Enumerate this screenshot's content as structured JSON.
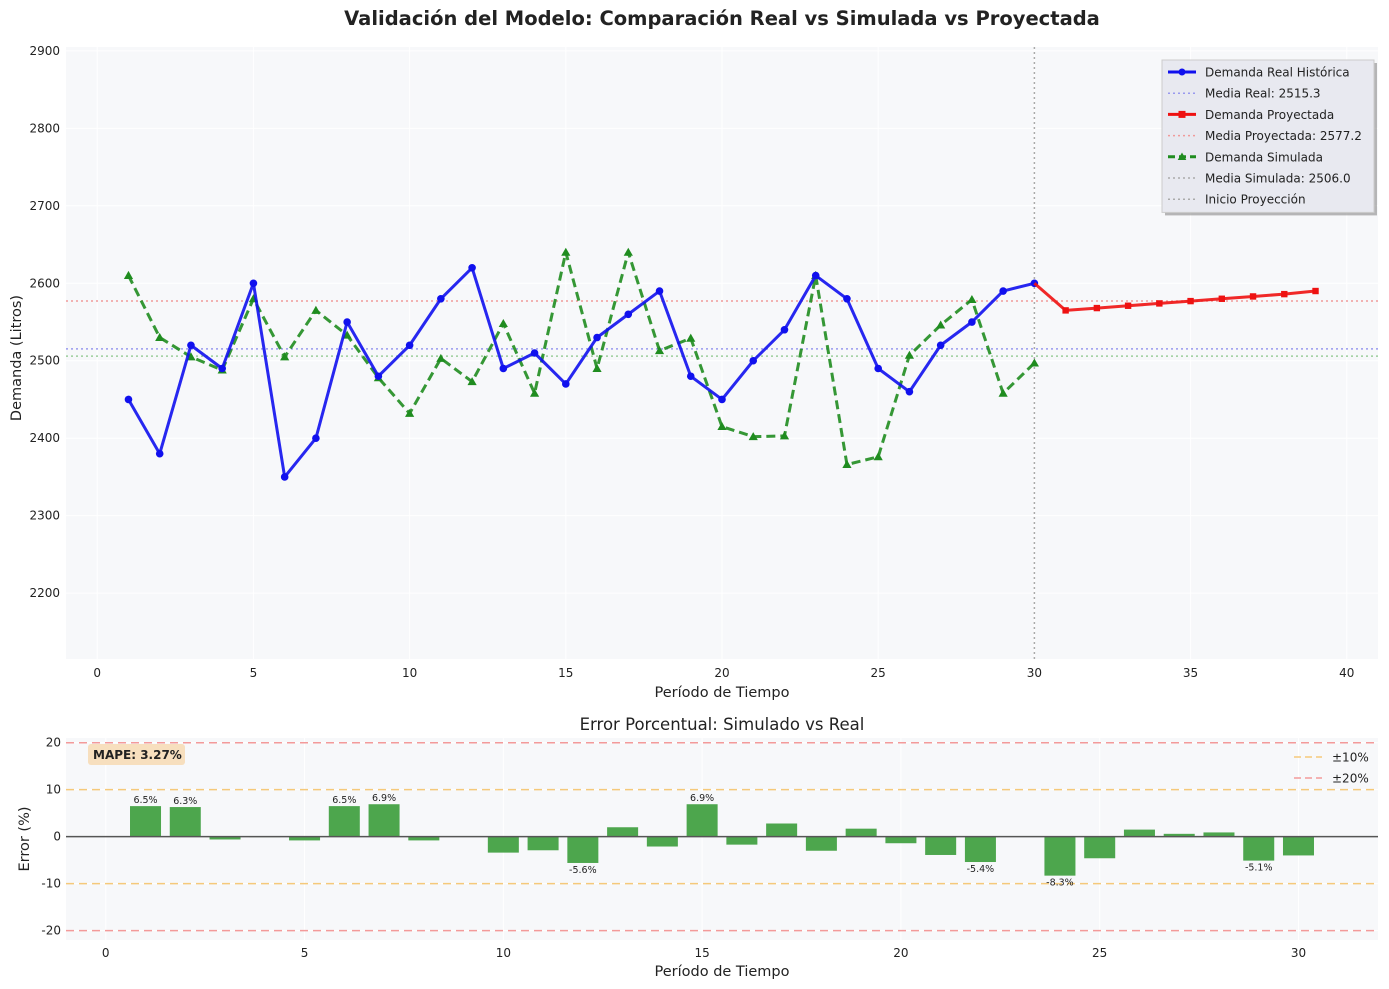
{
  "figure_title": "Validación del Modelo: Comparación Real vs Simulada vs Proyectada",
  "chart_data": [
    {
      "type": "line",
      "title": "Validación del Modelo: Comparación Real vs Simulada vs Proyectada",
      "xlabel": "Período de Tiempo",
      "ylabel": "Demanda (Litros)",
      "xlim": [
        -1,
        41
      ],
      "ylim": [
        2115,
        2905
      ],
      "xticks": [
        0,
        5,
        10,
        15,
        20,
        25,
        30,
        35,
        40
      ],
      "yticks": [
        2200,
        2300,
        2400,
        2500,
        2600,
        2700,
        2800,
        2900
      ],
      "grid": true,
      "legend_position": "top-right",
      "series": [
        {
          "name": "Demanda Real Histórica",
          "color": "#1010ee",
          "style": "solid",
          "marker": "circle",
          "x": [
            1,
            2,
            3,
            4,
            5,
            6,
            7,
            8,
            9,
            10,
            11,
            12,
            13,
            14,
            15,
            16,
            17,
            18,
            19,
            20,
            21,
            22,
            23,
            24,
            25,
            26,
            27,
            28,
            29,
            30
          ],
          "y": [
            2450,
            2380,
            2520,
            2490,
            2600,
            2350,
            2400,
            2550,
            2480,
            2520,
            2580,
            2620,
            2490,
            2510,
            2470,
            2530,
            2560,
            2590,
            2480,
            2450,
            2500,
            2540,
            2610,
            2580,
            2490,
            2460,
            2520,
            2550,
            2590,
            2600
          ]
        },
        {
          "name": "Demanda Proyectada",
          "color": "#ee1111",
          "style": "solid",
          "marker": "square",
          "x": [
            30,
            31,
            32,
            33,
            34,
            35,
            36,
            37,
            38,
            39
          ],
          "y": [
            2600,
            2565,
            2568,
            2571,
            2574,
            2577,
            2580,
            2583,
            2586,
            2590
          ]
        },
        {
          "name": "Demanda Simulada",
          "color": "#1f8c1f",
          "style": "dashed",
          "marker": "triangle",
          "x": [
            1,
            2,
            3,
            4,
            5,
            6,
            7,
            8,
            9,
            10,
            11,
            12,
            13,
            14,
            15,
            16,
            17,
            18,
            19,
            20,
            21,
            22,
            23,
            24,
            25,
            26,
            27,
            28,
            29,
            30
          ],
          "y": [
            2610,
            2530,
            2505,
            2488,
            2580,
            2505,
            2565,
            2533,
            2478,
            2432,
            2503,
            2473,
            2548,
            2458,
            2640,
            2490,
            2640,
            2513,
            2529,
            2415,
            2402,
            2403,
            2610,
            2366,
            2376,
            2507,
            2546,
            2579,
            2458,
            2497
          ]
        }
      ],
      "reference_lines": [
        {
          "name": "Media Real: 2515.3",
          "orientation": "horizontal",
          "value": 2515.3,
          "color": "#9999ee"
        },
        {
          "name": "Media Proyectada: 2577.2",
          "orientation": "horizontal",
          "value": 2577.2,
          "color": "#f09a9a"
        },
        {
          "name": "Media Simulada: 2506.0",
          "orientation": "horizontal",
          "value": 2506.0,
          "color": "#9acd9a"
        },
        {
          "name": "Inicio Proyección",
          "orientation": "vertical",
          "value": 30,
          "color": "#aaaaaa"
        }
      ],
      "legend": [
        {
          "label": "Demanda Real Histórica",
          "color": "#1010ee",
          "kind": "line-marker",
          "marker": "circle"
        },
        {
          "label": "Media Real: 2515.3",
          "color": "#9999ee",
          "kind": "dotted"
        },
        {
          "label": "Demanda Proyectada",
          "color": "#ee1111",
          "kind": "line-marker",
          "marker": "square"
        },
        {
          "label": "Media Proyectada: 2577.2",
          "color": "#f09a9a",
          "kind": "dotted"
        },
        {
          "label": "Demanda Simulada",
          "color": "#1f8c1f",
          "kind": "dashed-marker",
          "marker": "triangle"
        },
        {
          "label": "Media Simulada: 2506.0",
          "color": "#aaaaaa",
          "kind": "dotted"
        },
        {
          "label": "Inicio Proyección",
          "color": "#aaaaaa",
          "kind": "dotted"
        }
      ]
    },
    {
      "type": "bar",
      "title": "Error Porcentual: Simulado vs Real",
      "xlabel": "Período de Tiempo",
      "ylabel": "Error (%)",
      "xlim": [
        -1,
        32
      ],
      "ylim": [
        -22,
        21
      ],
      "xticks": [
        0,
        5,
        10,
        15,
        20,
        25,
        30
      ],
      "yticks": [
        -20,
        -10,
        0,
        10,
        20
      ],
      "grid": true,
      "legend_position": "top-right",
      "bar_color": "#3a9c3a",
      "x": [
        1,
        2,
        3,
        4,
        5,
        6,
        7,
        8,
        9,
        10,
        11,
        12,
        13,
        14,
        15,
        16,
        17,
        18,
        19,
        20,
        21,
        22,
        23,
        24,
        25,
        26,
        27,
        28,
        29,
        30
      ],
      "values": [
        6.5,
        6.3,
        -0.6,
        -0.1,
        -0.8,
        6.5,
        6.9,
        -0.8,
        0,
        -3.4,
        -2.9,
        -5.6,
        2.0,
        -2.1,
        6.9,
        -1.7,
        2.8,
        -3.0,
        1.7,
        -1.4,
        -3.9,
        -5.4,
        0,
        -8.3,
        -4.6,
        1.5,
        0.6,
        0.9,
        -5.1,
        -4.0
      ],
      "bar_labels": [
        {
          "x": 1,
          "text": "6.5%"
        },
        {
          "x": 2,
          "text": "6.3%"
        },
        {
          "x": 6,
          "text": "6.5%"
        },
        {
          "x": 7,
          "text": "6.9%"
        },
        {
          "x": 12,
          "text": "-5.6%"
        },
        {
          "x": 15,
          "text": "6.9%"
        },
        {
          "x": 22,
          "text": "-5.4%"
        },
        {
          "x": 24,
          "text": "-8.3%"
        },
        {
          "x": 29,
          "text": "-5.1%"
        }
      ],
      "threshold_lines": [
        {
          "label": "±10%",
          "values": [
            10,
            -10
          ],
          "color": "#f5c97a"
        },
        {
          "label": "±20%",
          "values": [
            20,
            -20
          ],
          "color": "#f39a9a"
        }
      ],
      "legend": [
        {
          "label": "±10%",
          "color": "#f5c97a",
          "kind": "dashed"
        },
        {
          "label": "±20%",
          "color": "#f39a9a",
          "kind": "dashed"
        }
      ],
      "annotation": "MAPE: 3.27%"
    }
  ]
}
